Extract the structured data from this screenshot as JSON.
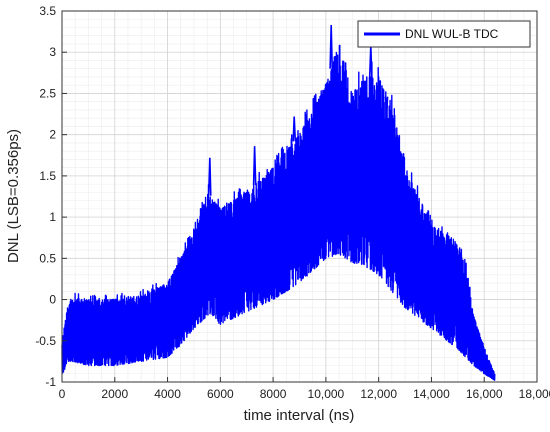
{
  "chart_data": {
    "type": "line",
    "xlabel": "time interval (ns)",
    "ylabel": "DNL (LSB=0.356ps)",
    "xlim": [
      0,
      18000
    ],
    "ylim": [
      -1,
      3.5
    ],
    "x_ticks": [
      {
        "value": 0,
        "label": "0"
      },
      {
        "value": 2000,
        "label": "2000"
      },
      {
        "value": 4000,
        "label": "4000"
      },
      {
        "value": 6000,
        "label": "6000"
      },
      {
        "value": 8000,
        "label": "8000"
      },
      {
        "value": 10000,
        "label": "10,000"
      },
      {
        "value": 12000,
        "label": "12,000"
      },
      {
        "value": 14000,
        "label": "14,000"
      },
      {
        "value": 16000,
        "label": "16,000"
      },
      {
        "value": 18000,
        "label": "18,000"
      }
    ],
    "y_ticks": [
      {
        "value": -1,
        "label": "-1"
      },
      {
        "value": -0.5,
        "label": "-0.5"
      },
      {
        "value": 0,
        "label": "0"
      },
      {
        "value": 0.5,
        "label": "0.5"
      },
      {
        "value": 1,
        "label": "1"
      },
      {
        "value": 1.5,
        "label": "1.5"
      },
      {
        "value": 2,
        "label": "2"
      },
      {
        "value": 2.5,
        "label": "2.5"
      },
      {
        "value": 3,
        "label": "3"
      },
      {
        "value": 3.5,
        "label": "3.5"
      }
    ],
    "grid": true,
    "minor_grid": true,
    "legend_position": "top-right",
    "series": [
      {
        "name": "DNL WUL-B TDC",
        "color": "#0000ff",
        "envelope": {
          "x": [
            0,
            200,
            400,
            1000,
            2000,
            3000,
            4000,
            4500,
            5000,
            5500,
            6000,
            7000,
            8000,
            9000,
            10000,
            10500,
            11000,
            11500,
            12000,
            12500,
            13000,
            14000,
            15000,
            15300,
            15600,
            16000,
            16400
          ],
          "upper": [
            -0.5,
            -0.1,
            0.05,
            0.0,
            0.0,
            0.05,
            0.2,
            0.5,
            0.8,
            1.3,
            1.1,
            1.3,
            1.6,
            2.0,
            2.6,
            3.1,
            2.5,
            2.7,
            2.7,
            2.3,
            1.6,
            0.9,
            0.7,
            0.4,
            -0.2,
            -0.6,
            -0.9
          ],
          "lower": [
            -0.95,
            -0.75,
            -0.75,
            -0.8,
            -0.8,
            -0.75,
            -0.7,
            -0.55,
            -0.35,
            -0.2,
            -0.3,
            -0.15,
            0.0,
            0.2,
            0.5,
            0.55,
            0.45,
            0.4,
            0.3,
            0.1,
            -0.1,
            -0.35,
            -0.6,
            -0.7,
            -0.8,
            -0.9,
            -0.98
          ]
        },
        "peaks": [
          {
            "x": 5600,
            "y": 1.72
          },
          {
            "x": 7300,
            "y": 1.86
          },
          {
            "x": 8800,
            "y": 2.22
          },
          {
            "x": 10200,
            "y": 3.33
          },
          {
            "x": 11700,
            "y": 3.08
          },
          {
            "x": 12300,
            "y": 2.26
          }
        ]
      }
    ]
  }
}
